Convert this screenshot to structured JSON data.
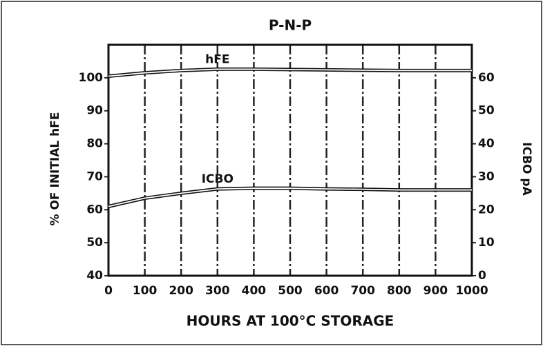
{
  "chart_data": {
    "type": "line",
    "title": "P-N-P",
    "xlabel": "HOURS AT 100°C STORAGE",
    "ylabel": "% OF INITIAL hFE",
    "y2label": "ICBO pA",
    "x": [
      0,
      100,
      200,
      300,
      400,
      500,
      600,
      700,
      800,
      900,
      1000
    ],
    "xlim": [
      0,
      1000
    ],
    "xticks": [
      0,
      100,
      200,
      300,
      400,
      500,
      600,
      700,
      800,
      900,
      1000
    ],
    "ylim": [
      40,
      110
    ],
    "yticks": [
      40,
      50,
      60,
      70,
      80,
      90,
      100
    ],
    "y2lim": [
      0,
      70
    ],
    "y2ticks": [
      0,
      10,
      20,
      30,
      40,
      50,
      60
    ],
    "grid": true,
    "series": [
      {
        "name": "hFE",
        "color": "#111111",
        "values": [
          100.5,
          101.5,
          102.2,
          102.6,
          102.6,
          102.5,
          102.4,
          102.3,
          102.2,
          102.2,
          102.2
        ]
      },
      {
        "name": "ICBO",
        "color": "#111111",
        "axis": "y2",
        "values": [
          21,
          23.5,
          25,
          26.3,
          26.5,
          26.5,
          26.3,
          26.2,
          26,
          26,
          26
        ]
      }
    ]
  }
}
